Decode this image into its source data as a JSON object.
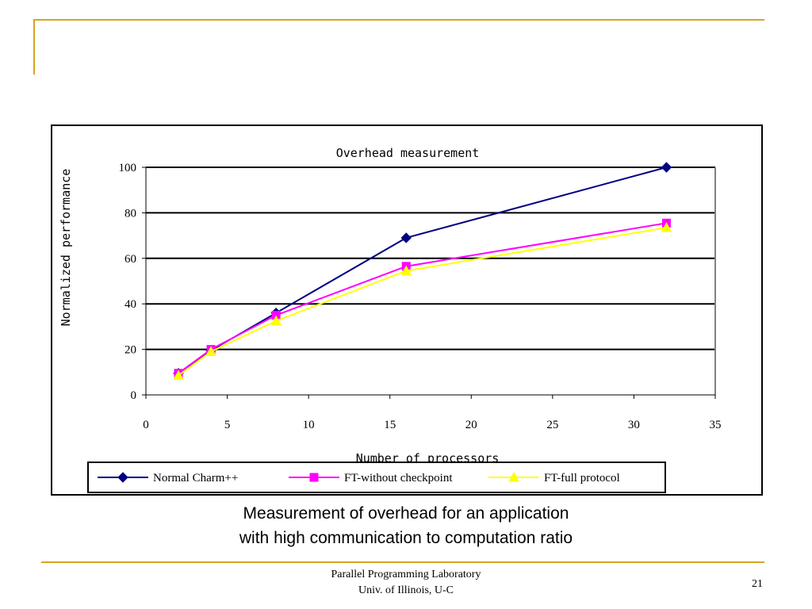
{
  "slide": {
    "caption_line1": "Measurement of overhead for an application",
    "caption_line2": "with high communication to computation ratio",
    "footer_line1": "Parallel Programming Laboratory",
    "footer_line2": "Univ. of Illinois, U-C",
    "page_number": "21",
    "accent_color": "#d6a520"
  },
  "chart_data": {
    "type": "line",
    "title": "Overhead measurement",
    "xlabel": "Number of processors",
    "ylabel": "Normalized performance",
    "xlim": [
      0,
      35
    ],
    "ylim": [
      0,
      100
    ],
    "xticks": [
      0,
      5,
      10,
      15,
      20,
      25,
      30,
      35
    ],
    "yticks": [
      0,
      20,
      40,
      60,
      80,
      100
    ],
    "grid": "horizontal",
    "legend_position": "bottom",
    "series": [
      {
        "name": "Normal Charm++",
        "color": "#000080",
        "marker": "diamond",
        "x": [
          2,
          4,
          8,
          16,
          32
        ],
        "y": [
          9.5,
          19.5,
          36,
          69,
          100
        ]
      },
      {
        "name": "FT-without checkpoint",
        "color": "#ff00ff",
        "marker": "square",
        "x": [
          2,
          4,
          8,
          16,
          32
        ],
        "y": [
          9.5,
          20,
          35,
          56.5,
          75.5
        ]
      },
      {
        "name": "FT-full protocol",
        "color": "#ffff00",
        "marker": "triangle",
        "x": [
          2,
          4,
          8,
          16,
          32
        ],
        "y": [
          8.5,
          19,
          32.5,
          54.5,
          73.5
        ]
      }
    ]
  }
}
